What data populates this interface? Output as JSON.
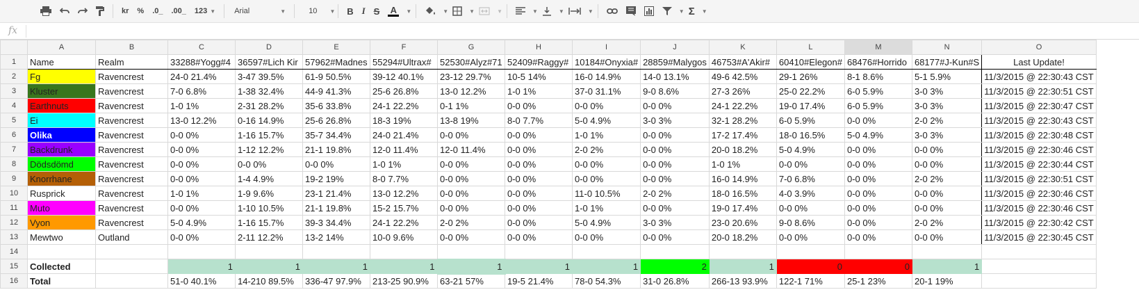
{
  "toolbar": {
    "currency": "kr",
    "percent": "%",
    "dec_less": ".0_",
    "dec_more": ".00_",
    "more_formats": "123",
    "font": "Arial",
    "size": "10",
    "bold": "B",
    "italic": "I",
    "strike": "S",
    "text_color": "A",
    "sum": "Σ"
  },
  "formula": {
    "fx": "fx",
    "value": ""
  },
  "columns": [
    "A",
    "B",
    "C",
    "D",
    "E",
    "F",
    "G",
    "H",
    "I",
    "J",
    "K",
    "L",
    "M",
    "N",
    "O"
  ],
  "rows": [
    {
      "n": "1",
      "cells": [
        "Name",
        "Realm",
        "33288#Yogg#4",
        "36597#Lich Kir",
        "57962#Madnes",
        "55294#Ultrax#",
        "52530#Alyz#71",
        "52409#Raggy#",
        "10184#Onyxia#",
        "28859#Malygos",
        "46753#A'Akir#",
        "60410#Elegon#",
        "68476#Horrido",
        "68177#J-Kun#S",
        "Last Update!"
      ]
    },
    {
      "n": "2",
      "cells": [
        "Fg",
        "Ravencrest",
        "24-0 21.4%",
        "3-47 39.5%",
        "61-9 50.5%",
        "39-12 40.1%",
        "23-12 29.7%",
        "10-5 14%",
        "16-0 14.9%",
        "14-0 13.1%",
        "49-6 42.5%",
        "29-1 26%",
        "8-1 8.6%",
        "5-1 5.9%",
        "11/3/2015 @ 22:30:43 CST"
      ]
    },
    {
      "n": "3",
      "cells": [
        "Kluster",
        "Ravencrest",
        "7-0 6.8%",
        "1-38 32.4%",
        "44-9 41.3%",
        "25-6 26.8%",
        "13-0 12.2%",
        "1-0 1%",
        "37-0 31.1%",
        "9-0 8.6%",
        "27-3 26%",
        "25-0 22.2%",
        "6-0 5.9%",
        "3-0 3%",
        "11/3/2015 @ 22:30:51 CST"
      ]
    },
    {
      "n": "4",
      "cells": [
        "Earthnuts",
        "Ravencrest",
        "1-0 1%",
        "2-31 28.2%",
        "35-6 33.8%",
        "24-1 22.2%",
        "0-1 1%",
        "0-0 0%",
        "0-0 0%",
        "0-0 0%",
        "24-1 22.2%",
        "19-0 17.4%",
        "6-0 5.9%",
        "3-0 3%",
        "11/3/2015 @ 22:30:47 CST"
      ]
    },
    {
      "n": "5",
      "cells": [
        "Ei",
        "Ravencrest",
        "13-0 12.2%",
        "0-16 14.9%",
        "25-6 26.8%",
        "18-3 19%",
        "13-8 19%",
        "8-0 7.7%",
        "5-0 4.9%",
        "3-0 3%",
        "32-1 28.2%",
        "6-0 5.9%",
        "0-0 0%",
        "2-0 2%",
        "11/3/2015 @ 22:30:43 CST"
      ]
    },
    {
      "n": "6",
      "cells": [
        "Olika",
        "Ravencrest",
        "0-0 0%",
        "1-16 15.7%",
        "35-7 34.4%",
        "24-0 21.4%",
        "0-0 0%",
        "0-0 0%",
        "1-0 1%",
        "0-0 0%",
        "17-2 17.4%",
        "18-0 16.5%",
        "5-0 4.9%",
        "3-0 3%",
        "11/3/2015 @ 22:30:48 CST"
      ]
    },
    {
      "n": "7",
      "cells": [
        "Backdrunk",
        "Ravencrest",
        "0-0 0%",
        "1-12 12.2%",
        "21-1 19.8%",
        "12-0 11.4%",
        "12-0 11.4%",
        "0-0 0%",
        "2-0 2%",
        "0-0 0%",
        "20-0 18.2%",
        "5-0 4.9%",
        "0-0 0%",
        "0-0 0%",
        "11/3/2015 @ 22:30:46 CST"
      ]
    },
    {
      "n": "8",
      "cells": [
        "Dödsdömd",
        "Ravencrest",
        "0-0 0%",
        "0-0 0%",
        "0-0 0%",
        "1-0 1%",
        "0-0 0%",
        "0-0 0%",
        "0-0 0%",
        "0-0 0%",
        "1-0 1%",
        "0-0 0%",
        "0-0 0%",
        "0-0 0%",
        "11/3/2015 @ 22:30:44 CST"
      ]
    },
    {
      "n": "9",
      "cells": [
        "Knorrhane",
        "Ravencrest",
        "0-0 0%",
        "1-4 4.9%",
        "19-2 19%",
        "8-0 7.7%",
        "0-0 0%",
        "0-0 0%",
        "0-0 0%",
        "0-0 0%",
        "16-0 14.9%",
        "7-0 6.8%",
        "0-0 0%",
        "2-0 2%",
        "11/3/2015 @ 22:30:51 CST"
      ]
    },
    {
      "n": "10",
      "cells": [
        "Rusprick",
        "Ravencrest",
        "1-0 1%",
        "1-9 9.6%",
        "23-1 21.4%",
        "13-0 12.2%",
        "0-0 0%",
        "0-0 0%",
        "11-0 10.5%",
        "2-0 2%",
        "18-0 16.5%",
        "4-0 3.9%",
        "0-0 0%",
        "0-0 0%",
        "11/3/2015 @ 22:30:46 CST"
      ]
    },
    {
      "n": "11",
      "cells": [
        "Muto",
        "Ravencrest",
        "0-0 0%",
        "1-10 10.5%",
        "21-1 19.8%",
        "15-2 15.7%",
        "0-0 0%",
        "0-0 0%",
        "1-0 1%",
        "0-0 0%",
        "19-0 17.4%",
        "0-0 0%",
        "0-0 0%",
        "0-0 0%",
        "11/3/2015 @ 22:30:46 CST"
      ]
    },
    {
      "n": "12",
      "cells": [
        "Vyon",
        "Ravencrest",
        "5-0 4.9%",
        "1-16 15.7%",
        "39-3 34.4%",
        "24-1 22.2%",
        "2-0 2%",
        "0-0 0%",
        "5-0 4.9%",
        "3-0 3%",
        "23-0 20.6%",
        "9-0 8.6%",
        "0-0 0%",
        "2-0 2%",
        "11/3/2015 @ 22:30:42 CST"
      ]
    },
    {
      "n": "13",
      "cells": [
        "Mewtwo",
        "Outland",
        "0-0 0%",
        "2-11 12.2%",
        "13-2 14%",
        "10-0 9.6%",
        "0-0 0%",
        "0-0 0%",
        "0-0 0%",
        "0-0 0%",
        "20-0 18.2%",
        "0-0 0%",
        "0-0 0%",
        "0-0 0%",
        "11/3/2015 @ 22:30:45 CST"
      ]
    },
    {
      "n": "14",
      "cells": [
        "",
        "",
        "",
        "",
        "",
        "",
        "",
        "",
        "",
        "",
        "",
        "",
        "",
        "",
        ""
      ]
    },
    {
      "n": "15",
      "cells": [
        "Collected",
        "",
        "1",
        "1",
        "1",
        "1",
        "1",
        "1",
        "1",
        "2",
        "1",
        "0",
        "0",
        "1",
        ""
      ]
    },
    {
      "n": "16",
      "cells": [
        "Total",
        "",
        "51-0 40.1%",
        "14-210 89.5%",
        "336-47 97.9%",
        "213-25 90.9%",
        "63-21 57%",
        "19-5 21.4%",
        "78-0 54.3%",
        "31-0 26.8%",
        "266-13 93.9%",
        "122-1 71%",
        "25-1 23%",
        "20-1 19%",
        ""
      ]
    }
  ],
  "name_colors": {
    "2": {
      "bg": "#ffff00",
      "fg": "#222222"
    },
    "3": {
      "bg": "#38761d",
      "fg": "#222222"
    },
    "4": {
      "bg": "#ff0000",
      "fg": "#222222"
    },
    "5": {
      "bg": "#00ffff",
      "fg": "#222222"
    },
    "6": {
      "bg": "#0000ff",
      "fg": "#ffffff"
    },
    "7": {
      "bg": "#9900ff",
      "fg": "#222222"
    },
    "8": {
      "bg": "#00ff00",
      "fg": "#222222"
    },
    "9": {
      "bg": "#b45f06",
      "fg": "#222222"
    },
    "10": {
      "bg": "#ffffff",
      "fg": "#222222"
    },
    "11": {
      "bg": "#ff00ff",
      "fg": "#222222"
    },
    "12": {
      "bg": "#ff9900",
      "fg": "#222222"
    },
    "13": {
      "bg": "#ffffff",
      "fg": "#222222"
    }
  },
  "collected_colors": [
    "#b7e1cd",
    "#b7e1cd",
    "#b7e1cd",
    "#b7e1cd",
    "#b7e1cd",
    "#b7e1cd",
    "#b7e1cd",
    "#00ff00",
    "#b7e1cd",
    "#ff0000",
    "#ff0000",
    "#b7e1cd"
  ],
  "selected_column": "M",
  "selected_cell": "G15"
}
